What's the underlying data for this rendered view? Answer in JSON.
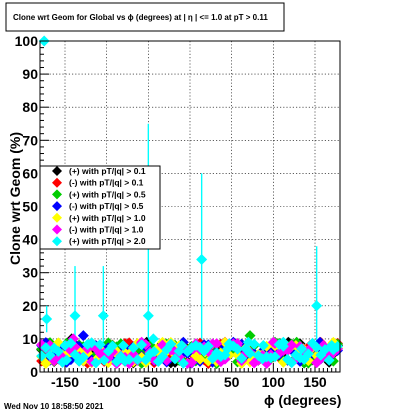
{
  "title": "Clone wrt Geom for Global vs ϕ (degrees) at |  η | <= 1.0 at pT > 0.11",
  "timestamp": "Wed Nov 10 18:58:50 2021",
  "chart_data": {
    "type": "scatter",
    "xlabel": "ϕ (degrees)",
    "ylabel": "Clone wrt Geom (%)",
    "xlim": [
      -180,
      180
    ],
    "ylim": [
      0,
      100
    ],
    "xticks": [
      -150,
      -100,
      -50,
      0,
      50,
      100,
      150
    ],
    "yticks": [
      0,
      10,
      20,
      30,
      40,
      50,
      60,
      70,
      80,
      90,
      100
    ],
    "grid": true,
    "legend_position": "left, mid-height",
    "series": [
      {
        "name": "(+) with pT/|q| > 0.1",
        "color": "#000000",
        "marker": "diamond",
        "seed": 11,
        "points": [
          [
            -170,
            6
          ],
          [
            -142,
            10
          ],
          [
            -96,
            7
          ],
          [
            -52,
            9
          ],
          [
            10,
            5
          ],
          [
            62,
            7
          ],
          [
            118,
            9
          ],
          [
            168,
            6
          ]
        ]
      },
      {
        "name": "(-) with pT/|q| > 0.1",
        "color": "#ff0000",
        "marker": "diamond",
        "seed": 23,
        "points": [
          [
            -160,
            7
          ],
          [
            -120,
            8
          ],
          [
            -70,
            6
          ],
          [
            -20,
            8
          ],
          [
            42,
            9
          ],
          [
            96,
            6
          ],
          [
            144,
            8
          ]
        ]
      },
      {
        "name": "(+) with pT/|q| > 0.5",
        "color": "#00cc00",
        "marker": "diamond",
        "seed": 37,
        "points": [
          [
            -150,
            6
          ],
          [
            -105,
            7
          ],
          [
            -48,
            8
          ],
          [
            28,
            7
          ],
          [
            72,
            11
          ],
          [
            128,
            9
          ]
        ]
      },
      {
        "name": "(-) with pT/|q| > 0.5",
        "color": "#0000ff",
        "marker": "diamond",
        "seed": 41,
        "points": [
          [
            -165,
            7
          ],
          [
            -128,
            11
          ],
          [
            -82,
            6
          ],
          [
            -8,
            9
          ],
          [
            50,
            8
          ],
          [
            108,
            7
          ],
          [
            156,
            9
          ]
        ]
      },
      {
        "name": "(+) with pT/|q| > 1.0",
        "color": "#ffff00",
        "marker": "diamond",
        "seed": 53,
        "points": [
          [
            -136,
            5
          ],
          [
            -90,
            6
          ],
          [
            -40,
            7
          ],
          [
            18,
            6
          ],
          [
            84,
            5
          ],
          [
            136,
            7
          ]
        ]
      },
      {
        "name": "(-) with pT/|q| > 1.0",
        "color": "#ff00ff",
        "marker": "diamond",
        "seed": 67,
        "points": [
          [
            -168,
            8
          ],
          [
            -140,
            10
          ],
          [
            -112,
            7
          ],
          [
            -58,
            9
          ],
          [
            4,
            7
          ],
          [
            56,
            8
          ],
          [
            100,
            9
          ],
          [
            160,
            8
          ]
        ]
      },
      {
        "name": "(+) with pT/|q| > 2.0",
        "color": "#00ffff",
        "marker": "diamond",
        "seed": 79,
        "points": [
          [
            -175,
            100
          ],
          [
            -172,
            16
          ],
          [
            -150,
            8
          ],
          [
            -138,
            17
          ],
          [
            -104,
            17
          ],
          [
            -80,
            8
          ],
          [
            -50,
            17
          ],
          [
            -44,
            10
          ],
          [
            -10,
            8
          ],
          [
            14,
            34
          ],
          [
            45,
            7
          ],
          [
            70,
            9
          ],
          [
            88,
            8
          ],
          [
            112,
            9
          ],
          [
            134,
            7
          ],
          [
            152,
            20
          ],
          [
            170,
            8
          ]
        ],
        "errors": [
          [
            -172,
            4,
            4
          ],
          [
            -138,
            14,
            15
          ],
          [
            -104,
            14,
            15
          ],
          [
            -50,
            15,
            58
          ],
          [
            14,
            25,
            26
          ],
          [
            152,
            18,
            18
          ]
        ]
      }
    ]
  }
}
